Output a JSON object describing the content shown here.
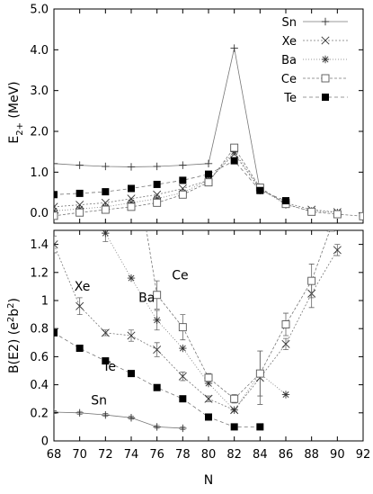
{
  "chart_data": [
    {
      "type": "line",
      "panel": "top",
      "ylabel": "E",
      "ylabel_sub": "2+",
      "ylabel_unit": " (MeV)",
      "ylim": [
        -0.25,
        5.0
      ],
      "yticks": [
        "5.0",
        "4.0",
        "3.0",
        "2.0",
        "1.0",
        "0.0"
      ],
      "ytick_values": [
        5.0,
        4.0,
        3.0,
        2.0,
        1.0,
        0.0
      ],
      "xlim": [
        68,
        92
      ],
      "legend_position": "top-right",
      "series": [
        {
          "name": "Sn",
          "marker": "plus",
          "dash": "",
          "x": [
            68,
            70,
            72,
            74,
            76,
            78,
            80,
            82,
            84
          ],
          "y": [
            1.21,
            1.17,
            1.14,
            1.13,
            1.14,
            1.17,
            1.21,
            4.04,
            0.55
          ]
        },
        {
          "name": "Xe",
          "marker": "cross",
          "dash": "2,2",
          "x": [
            68,
            70,
            72,
            74,
            76,
            78,
            80,
            82,
            84,
            86,
            88,
            90
          ],
          "y": [
            0.15,
            0.2,
            0.25,
            0.35,
            0.45,
            0.6,
            0.8,
            1.45,
            0.58,
            0.25,
            0.08,
            0.02
          ]
        },
        {
          "name": "Ba",
          "marker": "star",
          "dash": "1,2",
          "x": [
            68,
            70,
            72,
            74,
            76,
            78,
            80,
            82,
            84,
            86,
            88,
            90
          ],
          "y": [
            0.05,
            0.1,
            0.15,
            0.25,
            0.35,
            0.5,
            0.8,
            1.5,
            0.6,
            0.2,
            0.05,
            0.01
          ]
        },
        {
          "name": "Ce",
          "marker": "square-open",
          "dash": "3,2",
          "x": [
            68,
            70,
            72,
            74,
            76,
            78,
            80,
            82,
            84,
            86,
            88,
            90,
            92
          ],
          "y": [
            -0.07,
            0.01,
            0.08,
            0.15,
            0.25,
            0.45,
            0.75,
            1.6,
            0.62,
            0.22,
            0.03,
            -0.03,
            -0.08
          ]
        },
        {
          "name": "Te",
          "marker": "square-filled",
          "dash": "4,3",
          "x": [
            68,
            70,
            72,
            74,
            76,
            78,
            80,
            82,
            84,
            86
          ],
          "y": [
            0.45,
            0.48,
            0.52,
            0.6,
            0.7,
            0.8,
            0.95,
            1.28,
            0.55,
            0.3
          ]
        }
      ]
    },
    {
      "type": "line",
      "panel": "bottom",
      "xlabel": "N",
      "ylabel": "B(E2) (e",
      "ylabel_sup": "2",
      "ylabel_mid": "b",
      "ylabel_sup2": "2",
      "ylabel_end": ")",
      "ylim": [
        0,
        1.5
      ],
      "yticks": [
        "1.4",
        "1.2",
        "1",
        "0.8",
        "0.6",
        "0.4",
        "0.2",
        "0"
      ],
      "ytick_values": [
        1.4,
        1.2,
        1.0,
        0.8,
        0.6,
        0.4,
        0.2,
        0.0
      ],
      "xlim": [
        68,
        92
      ],
      "xticks": [
        "68",
        "70",
        "72",
        "74",
        "76",
        "78",
        "80",
        "82",
        "84",
        "86",
        "88",
        "90",
        "92"
      ],
      "xtick_values": [
        68,
        70,
        72,
        74,
        76,
        78,
        80,
        82,
        84,
        86,
        88,
        90,
        92
      ],
      "annotations": [
        {
          "text": "Xe",
          "x": 70.2,
          "y": 1.07
        },
        {
          "text": "Ba",
          "x": 75.2,
          "y": 0.99
        },
        {
          "text": "Ce",
          "x": 77.8,
          "y": 1.15
        },
        {
          "text": "Te",
          "x": 72.3,
          "y": 0.5
        },
        {
          "text": "Sn",
          "x": 71.5,
          "y": 0.26
        }
      ],
      "series": [
        {
          "name": "Sn",
          "marker": "plus",
          "dash": "",
          "x": [
            68,
            70,
            72,
            74,
            76,
            78
          ],
          "y": [
            0.205,
            0.2,
            0.185,
            0.165,
            0.1,
            0.09
          ],
          "err": [
            0.01,
            0.01,
            0.01,
            0.01,
            0.01,
            0.01
          ]
        },
        {
          "name": "Te",
          "marker": "square-filled",
          "dash": "4,3",
          "x": [
            68,
            70,
            72,
            74,
            76,
            78,
            80,
            82,
            84
          ],
          "y": [
            0.77,
            0.66,
            0.57,
            0.48,
            0.38,
            0.3,
            0.17,
            0.1,
            0.1
          ],
          "err": [
            0,
            0,
            0,
            0,
            0,
            0,
            0,
            0,
            0
          ]
        },
        {
          "name": "Xe",
          "marker": "cross",
          "dash": "2,2",
          "x": [
            68,
            70,
            72,
            74,
            76,
            78,
            80,
            82,
            84,
            86,
            88,
            90
          ],
          "y": [
            1.4,
            0.96,
            0.77,
            0.75,
            0.65,
            0.46,
            0.3,
            0.22,
            0.45,
            0.69,
            1.05,
            1.36
          ],
          "err": [
            0.06,
            0.06,
            0.02,
            0.04,
            0.05,
            0.03,
            0.02,
            0.01,
            0.19,
            0.04,
            0.1,
            0.04
          ]
        },
        {
          "name": "Ba",
          "marker": "star",
          "dash": "1,2",
          "x": [
            71,
            72,
            74,
            76,
            78,
            80,
            82,
            84,
            86
          ],
          "y": [
            1.6,
            1.48,
            1.16,
            0.86,
            0.66,
            0.41,
            0.22,
            0.48,
            0.33
          ],
          "err": [
            0,
            0.06,
            0,
            0.07,
            0,
            0,
            0,
            0,
            0
          ]
        },
        {
          "name": "Ce",
          "marker": "square-open",
          "dash": "3,2",
          "x": [
            75,
            76,
            78,
            80,
            82,
            84,
            86,
            88,
            89.5
          ],
          "y": [
            1.6,
            1.04,
            0.81,
            0.45,
            0.3,
            0.48,
            0.83,
            1.14,
            1.52
          ],
          "err": [
            0,
            0.1,
            0.09,
            0.03,
            0.03,
            0.16,
            0.08,
            0.12,
            0
          ]
        }
      ]
    }
  ]
}
